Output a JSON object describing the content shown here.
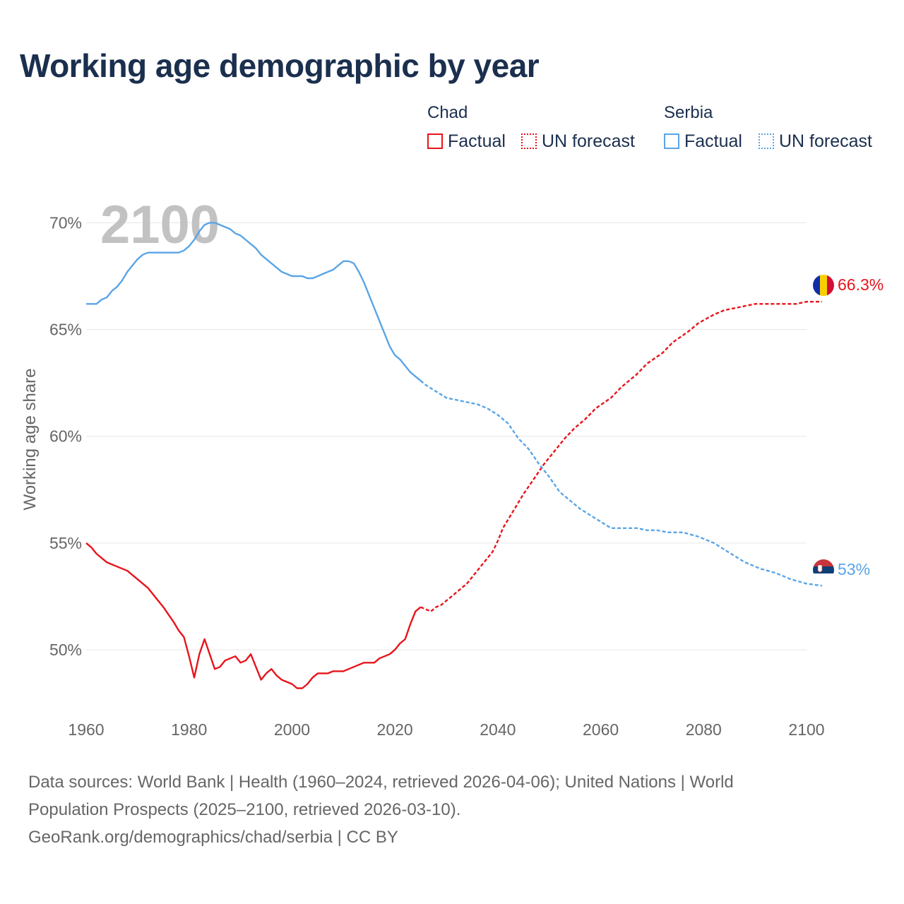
{
  "title": "Working age demographic by year",
  "legend": {
    "groups": [
      {
        "name": "Chad",
        "color": "#e8141b",
        "factual_label": "Factual",
        "forecast_label": "UN forecast"
      },
      {
        "name": "Serbia",
        "color": "#5aa5e6",
        "factual_label": "Factual",
        "forecast_label": "UN forecast"
      }
    ]
  },
  "year_label": "2100",
  "footer": {
    "line1": "Data sources: World Bank | Health (1960–2024, retrieved 2026-04-06); United Nations | World",
    "line2": "Population Prospects (2025–2100, retrieved 2026-03-10).",
    "line3": "GeoRank.org/demographics/chad/serbia | CC BY"
  },
  "chart_data": {
    "type": "line",
    "title": "Working age demographic by year",
    "ylabel": "Working age share",
    "xlabel": "",
    "xlim": [
      1960,
      2100
    ],
    "ylim": [
      46.3,
      71.5
    ],
    "x_ticks": [
      1960,
      1980,
      2000,
      2020,
      2040,
      2060,
      2080,
      2100
    ],
    "y_ticks": [
      50,
      55,
      60,
      65,
      70
    ],
    "y_tick_suffix": "%",
    "forecast_start": 2025,
    "series": [
      {
        "name": "Chad",
        "color": "#e8141b",
        "end_label": "66.3%",
        "points": [
          [
            1960,
            55.0
          ],
          [
            1961,
            54.8
          ],
          [
            1962,
            54.5
          ],
          [
            1963,
            54.3
          ],
          [
            1964,
            54.1
          ],
          [
            1966,
            53.9
          ],
          [
            1968,
            53.7
          ],
          [
            1970,
            53.3
          ],
          [
            1972,
            52.9
          ],
          [
            1974,
            52.3
          ],
          [
            1975,
            52.0
          ],
          [
            1977,
            51.3
          ],
          [
            1978,
            50.9
          ],
          [
            1979,
            50.6
          ],
          [
            1980,
            49.7
          ],
          [
            1981,
            48.7
          ],
          [
            1982,
            49.8
          ],
          [
            1983,
            50.5
          ],
          [
            1984,
            49.8
          ],
          [
            1985,
            49.1
          ],
          [
            1986,
            49.2
          ],
          [
            1987,
            49.5
          ],
          [
            1988,
            49.6
          ],
          [
            1989,
            49.7
          ],
          [
            1990,
            49.4
          ],
          [
            1991,
            49.5
          ],
          [
            1992,
            49.8
          ],
          [
            1993,
            49.2
          ],
          [
            1994,
            48.6
          ],
          [
            1995,
            48.9
          ],
          [
            1996,
            49.1
          ],
          [
            1997,
            48.8
          ],
          [
            1998,
            48.6
          ],
          [
            1999,
            48.5
          ],
          [
            2000,
            48.4
          ],
          [
            2001,
            48.2
          ],
          [
            2002,
            48.2
          ],
          [
            2003,
            48.4
          ],
          [
            2004,
            48.7
          ],
          [
            2005,
            48.9
          ],
          [
            2006,
            48.9
          ],
          [
            2007,
            48.9
          ],
          [
            2008,
            49.0
          ],
          [
            2009,
            49.0
          ],
          [
            2010,
            49.0
          ],
          [
            2011,
            49.1
          ],
          [
            2012,
            49.2
          ],
          [
            2013,
            49.3
          ],
          [
            2014,
            49.4
          ],
          [
            2015,
            49.4
          ],
          [
            2016,
            49.4
          ],
          [
            2017,
            49.6
          ],
          [
            2018,
            49.7
          ],
          [
            2019,
            49.8
          ],
          [
            2020,
            50.0
          ],
          [
            2021,
            50.3
          ],
          [
            2022,
            50.5
          ],
          [
            2023,
            51.2
          ],
          [
            2024,
            51.8
          ],
          [
            2025,
            52.0
          ],
          [
            2026,
            51.9
          ],
          [
            2027,
            51.8
          ],
          [
            2028,
            52.0
          ],
          [
            2029,
            52.1
          ],
          [
            2030,
            52.3
          ],
          [
            2032,
            52.7
          ],
          [
            2034,
            53.1
          ],
          [
            2036,
            53.7
          ],
          [
            2038,
            54.3
          ],
          [
            2039,
            54.6
          ],
          [
            2040,
            55.1
          ],
          [
            2041,
            55.7
          ],
          [
            2043,
            56.5
          ],
          [
            2045,
            57.3
          ],
          [
            2047,
            58.0
          ],
          [
            2049,
            58.7
          ],
          [
            2051,
            59.3
          ],
          [
            2053,
            59.9
          ],
          [
            2055,
            60.4
          ],
          [
            2057,
            60.8
          ],
          [
            2059,
            61.3
          ],
          [
            2062,
            61.8
          ],
          [
            2064,
            62.3
          ],
          [
            2067,
            62.9
          ],
          [
            2069,
            63.4
          ],
          [
            2072,
            63.9
          ],
          [
            2074,
            64.4
          ],
          [
            2077,
            64.9
          ],
          [
            2079,
            65.3
          ],
          [
            2082,
            65.7
          ],
          [
            2084,
            65.9
          ],
          [
            2086,
            66.0
          ],
          [
            2088,
            66.1
          ],
          [
            2090,
            66.2
          ],
          [
            2095,
            66.2
          ],
          [
            2098,
            66.2
          ],
          [
            2100,
            66.3
          ],
          [
            2103,
            66.3
          ]
        ]
      },
      {
        "name": "Serbia",
        "color": "#5aa5e6",
        "end_label": "53%",
        "points": [
          [
            1960,
            66.2
          ],
          [
            1962,
            66.2
          ],
          [
            1963,
            66.4
          ],
          [
            1964,
            66.5
          ],
          [
            1965,
            66.8
          ],
          [
            1966,
            67.0
          ],
          [
            1967,
            67.3
          ],
          [
            1968,
            67.7
          ],
          [
            1969,
            68.0
          ],
          [
            1970,
            68.3
          ],
          [
            1971,
            68.5
          ],
          [
            1972,
            68.6
          ],
          [
            1974,
            68.6
          ],
          [
            1976,
            68.6
          ],
          [
            1978,
            68.6
          ],
          [
            1979,
            68.7
          ],
          [
            1980,
            68.9
          ],
          [
            1981,
            69.2
          ],
          [
            1982,
            69.6
          ],
          [
            1983,
            69.9
          ],
          [
            1984,
            70.0
          ],
          [
            1985,
            70.0
          ],
          [
            1986,
            69.9
          ],
          [
            1987,
            69.8
          ],
          [
            1988,
            69.7
          ],
          [
            1989,
            69.5
          ],
          [
            1990,
            69.4
          ],
          [
            1991,
            69.2
          ],
          [
            1992,
            69.0
          ],
          [
            1993,
            68.8
          ],
          [
            1994,
            68.5
          ],
          [
            1995,
            68.3
          ],
          [
            1996,
            68.1
          ],
          [
            1997,
            67.9
          ],
          [
            1998,
            67.7
          ],
          [
            1999,
            67.6
          ],
          [
            2000,
            67.5
          ],
          [
            2002,
            67.5
          ],
          [
            2003,
            67.4
          ],
          [
            2004,
            67.4
          ],
          [
            2005,
            67.5
          ],
          [
            2006,
            67.6
          ],
          [
            2007,
            67.7
          ],
          [
            2008,
            67.8
          ],
          [
            2009,
            68.0
          ],
          [
            2010,
            68.2
          ],
          [
            2011,
            68.2
          ],
          [
            2012,
            68.1
          ],
          [
            2013,
            67.7
          ],
          [
            2014,
            67.2
          ],
          [
            2015,
            66.6
          ],
          [
            2016,
            66.0
          ],
          [
            2017,
            65.4
          ],
          [
            2018,
            64.8
          ],
          [
            2019,
            64.2
          ],
          [
            2020,
            63.8
          ],
          [
            2021,
            63.6
          ],
          [
            2022,
            63.3
          ],
          [
            2023,
            63.0
          ],
          [
            2024,
            62.8
          ],
          [
            2025,
            62.6
          ],
          [
            2026,
            62.4
          ],
          [
            2028,
            62.1
          ],
          [
            2030,
            61.8
          ],
          [
            2032,
            61.7
          ],
          [
            2034,
            61.6
          ],
          [
            2036,
            61.5
          ],
          [
            2038,
            61.3
          ],
          [
            2040,
            61.0
          ],
          [
            2042,
            60.6
          ],
          [
            2044,
            59.9
          ],
          [
            2046,
            59.4
          ],
          [
            2048,
            58.7
          ],
          [
            2050,
            58.1
          ],
          [
            2052,
            57.4
          ],
          [
            2054,
            57.0
          ],
          [
            2056,
            56.6
          ],
          [
            2058,
            56.3
          ],
          [
            2060,
            56.0
          ],
          [
            2062,
            55.7
          ],
          [
            2064,
            55.7
          ],
          [
            2067,
            55.7
          ],
          [
            2069,
            55.6
          ],
          [
            2071,
            55.6
          ],
          [
            2073,
            55.5
          ],
          [
            2076,
            55.5
          ],
          [
            2079,
            55.3
          ],
          [
            2082,
            55.0
          ],
          [
            2084,
            54.7
          ],
          [
            2086,
            54.4
          ],
          [
            2088,
            54.1
          ],
          [
            2091,
            53.8
          ],
          [
            2094,
            53.6
          ],
          [
            2097,
            53.3
          ],
          [
            2100,
            53.1
          ],
          [
            2103,
            53.0
          ]
        ]
      }
    ]
  }
}
